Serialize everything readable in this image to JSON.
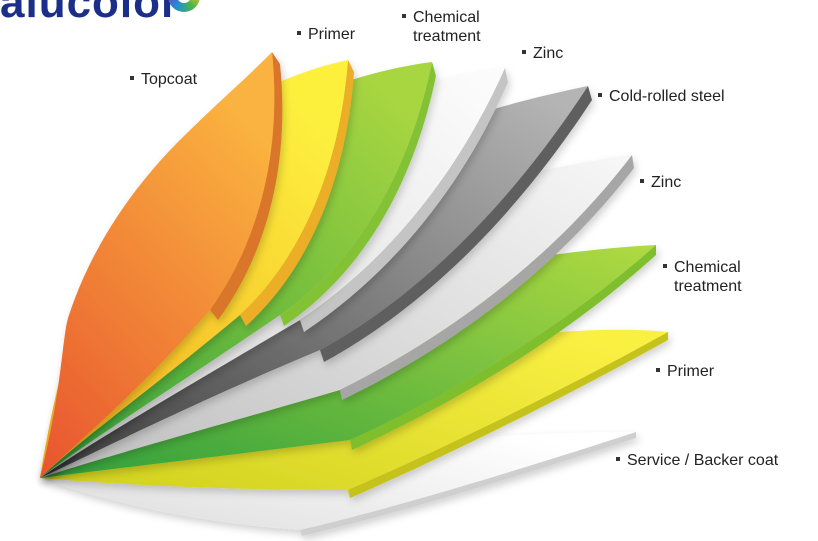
{
  "logo": {
    "text": "alucolor"
  },
  "layers": [
    {
      "label": "Topcoat",
      "color_light": "#f9a13b",
      "color_dark": "#e9592f"
    },
    {
      "label": "Primer",
      "color_light": "#fbe433",
      "color_dark": "#f0b31f"
    },
    {
      "label": "Chemical",
      "label2": "treatment",
      "color_light": "#9fd03e",
      "color_dark": "#3aaa3c"
    },
    {
      "label": "Zinc",
      "color_light": "#f3f3f3",
      "color_dark": "#d2d2d2"
    },
    {
      "label": "Cold-rolled steel",
      "color_light": "#a9a9a9",
      "color_dark": "#4a4a4a"
    },
    {
      "label": "Zinc",
      "color_light": "#f5f5f5",
      "color_dark": "#c8c8c8"
    },
    {
      "label": "Chemical",
      "label2": "treatment",
      "color_light": "#a6d43e",
      "color_dark": "#3eae3e"
    },
    {
      "label": "Primer",
      "color_light": "#f7ee3a",
      "color_dark": "#d9d51e"
    },
    {
      "label": "Service / Backer coat",
      "color_light": "#ffffff",
      "color_dark": "#e3e3e3"
    }
  ]
}
